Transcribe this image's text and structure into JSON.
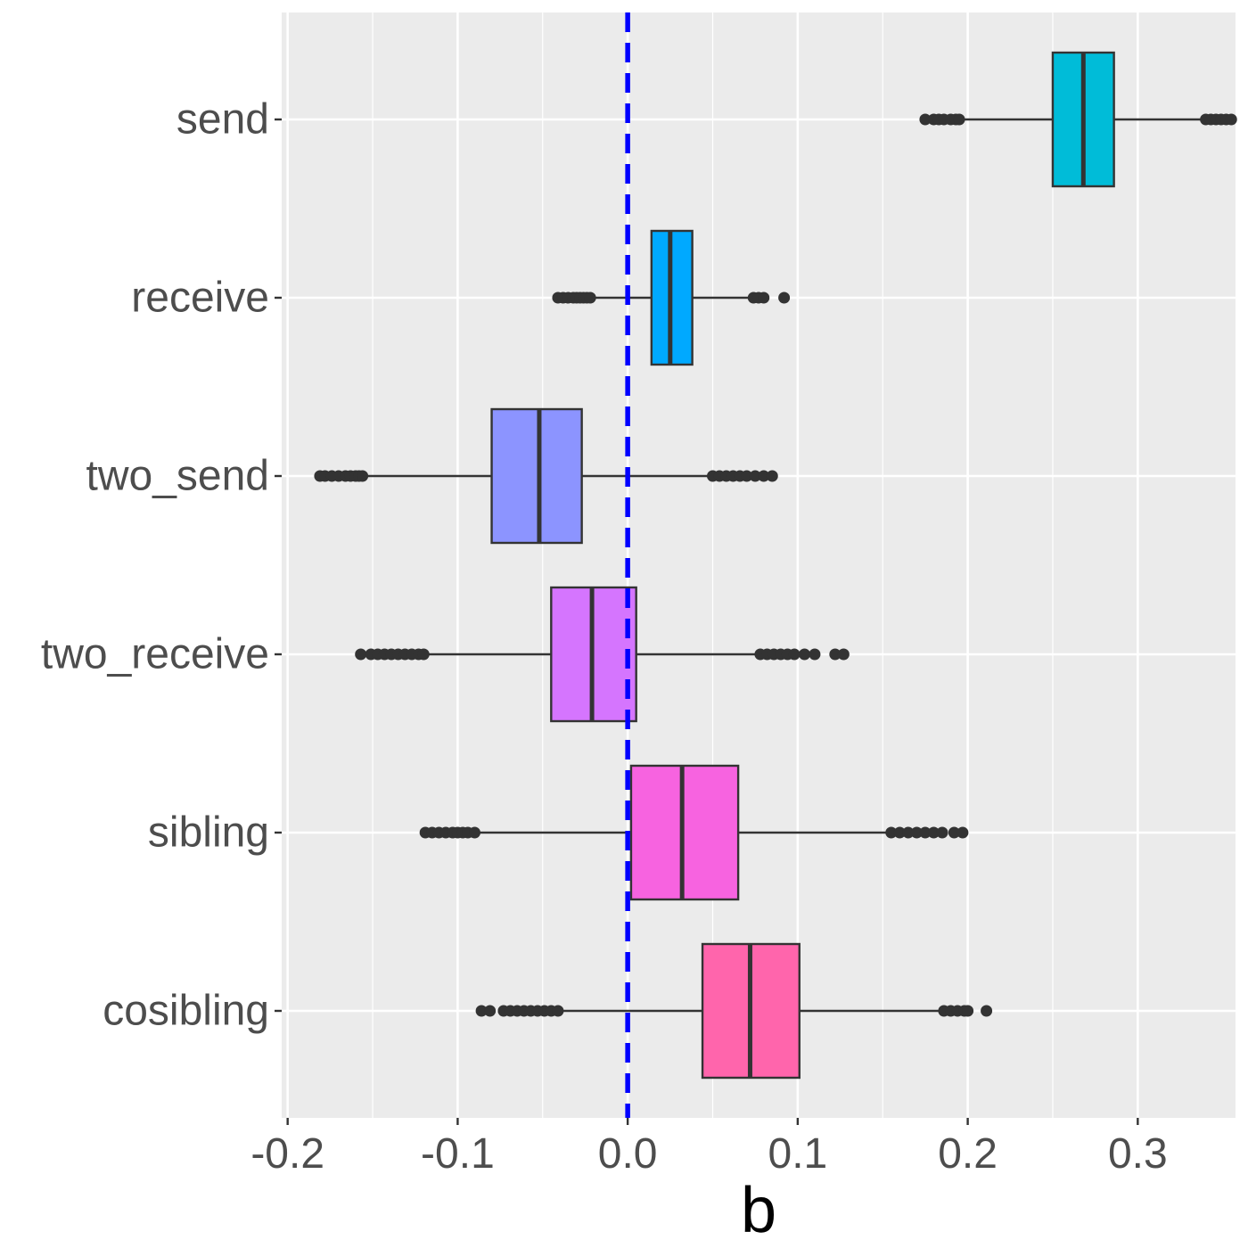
{
  "chart_data": {
    "type": "boxplot",
    "title": "",
    "xlabel": "b",
    "ylabel": "",
    "xlim": [
      -0.2035,
      0.3575
    ],
    "x_ticks": [
      -0.2,
      -0.1,
      0.0,
      0.1,
      0.2,
      0.3
    ],
    "x_tick_labels": [
      "-0.2",
      "-0.1",
      "0.0",
      "0.1",
      "0.2",
      "0.3"
    ],
    "grid": true,
    "reference_line": {
      "x": 0,
      "style": "dashed",
      "color": "#0000ff"
    },
    "categories": [
      "send",
      "receive",
      "two_send",
      "two_receive",
      "sibling",
      "cosibling"
    ],
    "series": [
      {
        "name": "send",
        "color": "#00BCD8",
        "whisker_low": 0.195,
        "q1": 0.25,
        "median": 0.268,
        "q3": 0.286,
        "whisker_high": 0.34,
        "outliers": [
          0.175,
          0.18,
          0.183,
          0.186,
          0.19,
          0.193,
          0.195,
          0.34,
          0.343,
          0.346,
          0.349,
          0.352,
          0.355
        ]
      },
      {
        "name": "receive",
        "color": "#00A9FF",
        "whisker_low": -0.022,
        "q1": 0.014,
        "median": 0.025,
        "q3": 0.038,
        "whisker_high": 0.074,
        "outliers": [
          -0.041,
          -0.038,
          -0.035,
          -0.032,
          -0.03,
          -0.028,
          -0.026,
          -0.024,
          -0.022,
          0.074,
          0.077,
          0.08,
          0.092
        ]
      },
      {
        "name": "two_send",
        "color": "#8C94FF",
        "whisker_low": -0.156,
        "q1": -0.08,
        "median": -0.052,
        "q3": -0.027,
        "whisker_high": 0.05,
        "outliers": [
          -0.181,
          -0.178,
          -0.174,
          -0.17,
          -0.166,
          -0.163,
          -0.16,
          -0.158,
          -0.156,
          0.05,
          0.054,
          0.058,
          0.062,
          0.066,
          0.07,
          0.075,
          0.08,
          0.085
        ]
      },
      {
        "name": "two_receive",
        "color": "#D575FE",
        "whisker_low": -0.12,
        "q1": -0.045,
        "median": -0.021,
        "q3": 0.005,
        "whisker_high": 0.078,
        "outliers": [
          -0.157,
          -0.151,
          -0.147,
          -0.143,
          -0.139,
          -0.135,
          -0.131,
          -0.127,
          -0.123,
          -0.12,
          0.078,
          0.082,
          0.086,
          0.09,
          0.094,
          0.098,
          0.104,
          0.11,
          0.122,
          0.127
        ]
      },
      {
        "name": "sibling",
        "color": "#F763E0",
        "whisker_low": -0.09,
        "q1": 0.002,
        "median": 0.032,
        "q3": 0.065,
        "whisker_high": 0.155,
        "outliers": [
          -0.119,
          -0.115,
          -0.111,
          -0.107,
          -0.103,
          -0.1,
          -0.097,
          -0.094,
          -0.09,
          0.155,
          0.16,
          0.165,
          0.17,
          0.175,
          0.18,
          0.185,
          0.192,
          0.197
        ]
      },
      {
        "name": "cosibling",
        "color": "#FF65AC",
        "whisker_low": -0.04,
        "q1": 0.044,
        "median": 0.072,
        "q3": 0.101,
        "whisker_high": 0.186,
        "outliers": [
          -0.086,
          -0.081,
          -0.073,
          -0.069,
          -0.065,
          -0.061,
          -0.057,
          -0.053,
          -0.049,
          -0.045,
          -0.041,
          0.186,
          0.19,
          0.194,
          0.198,
          0.2,
          0.211
        ]
      }
    ]
  }
}
